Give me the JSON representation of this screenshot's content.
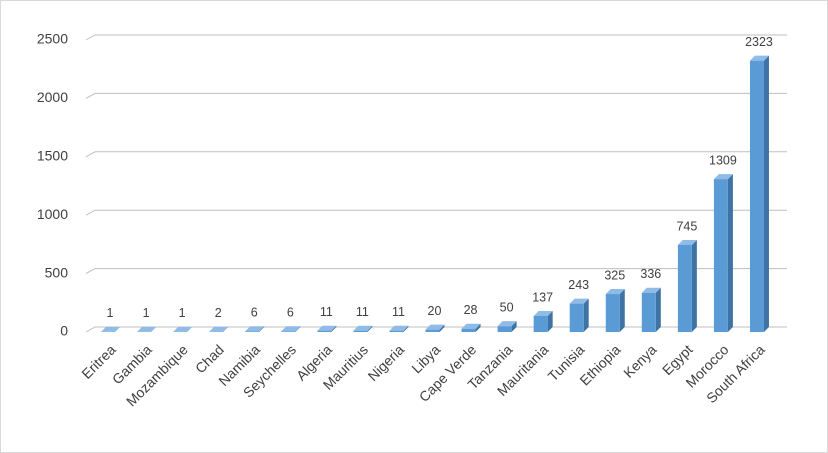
{
  "chart_data": {
    "type": "bar",
    "categories": [
      "Eritrea",
      "Gambia",
      "Mozambique",
      "Chad",
      "Namibia",
      "Seychelles",
      "Algeria",
      "Mauritius",
      "Nigeria",
      "Libya",
      "Cape Verde",
      "Tanzania",
      "Mauritania",
      "Tunisia",
      "Ethiopia",
      "Kenya",
      "Egypt",
      "Morocco",
      "South Africa"
    ],
    "values": [
      1,
      1,
      1,
      2,
      6,
      6,
      11,
      11,
      11,
      20,
      28,
      50,
      137,
      243,
      325,
      336,
      745,
      1309,
      2323
    ],
    "color": "#5b9bd5",
    "ylim": [
      0,
      2500
    ],
    "yticks": [
      0,
      500,
      1000,
      1500,
      2000,
      2500
    ],
    "grid": true
  }
}
